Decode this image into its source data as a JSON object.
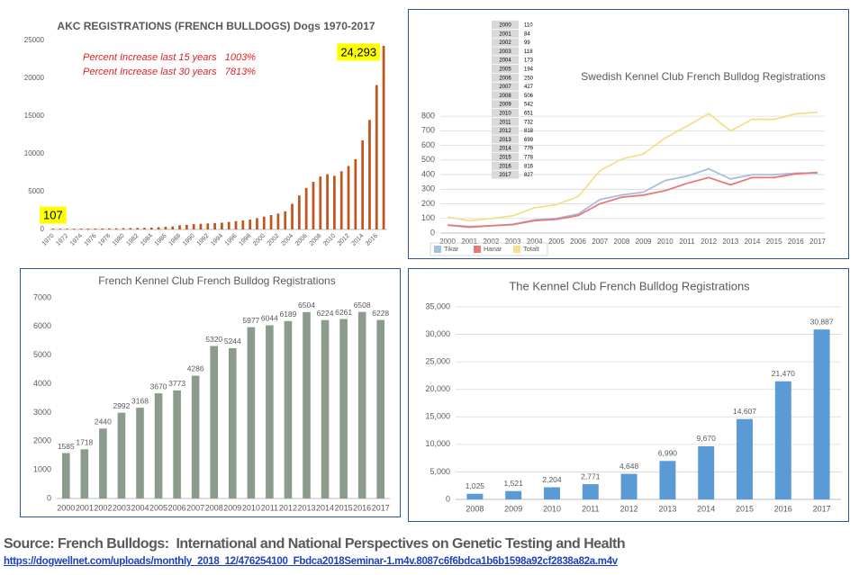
{
  "chart_data": [
    {
      "type": "bar",
      "title": "AKC REGISTRATIONS (FRENCH BULLDOGS) Dogs 1970-2017",
      "annotations": [
        "Percent Increase last 15 years   1003%",
        "Percent Increase last 30 years   7813%"
      ],
      "categories": [
        "1970",
        null,
        "1972",
        null,
        "1974",
        null,
        "1976",
        null,
        "1978",
        null,
        "1980",
        null,
        "1982",
        null,
        "1984",
        null,
        "1986",
        null,
        "1988",
        null,
        "1990",
        null,
        "1992",
        null,
        "1994",
        null,
        "1996",
        null,
        "1998",
        null,
        "2000",
        null,
        "2002",
        null,
        "2004",
        null,
        "2006",
        null,
        "2008",
        null,
        "2010",
        null,
        "2012",
        null,
        "2014",
        null,
        "2016",
        null
      ],
      "values": [
        107,
        105,
        100,
        100,
        110,
        110,
        120,
        130,
        140,
        150,
        170,
        180,
        200,
        220,
        250,
        300,
        350,
        400,
        550,
        600,
        700,
        750,
        800,
        850,
        900,
        1000,
        1100,
        1200,
        1300,
        1500,
        1700,
        1900,
        2100,
        2400,
        3400,
        4500,
        5500,
        6300,
        7000,
        7300,
        7100,
        7700,
        8400,
        9300,
        11800,
        14500,
        19100,
        24293
      ],
      "value_labels": [
        "107",
        null,
        null,
        null,
        null,
        null,
        null,
        null,
        null,
        null,
        null,
        null,
        null,
        null,
        null,
        null,
        null,
        null,
        null,
        null,
        null,
        null,
        null,
        null,
        null,
        null,
        null,
        null,
        null,
        null,
        null,
        null,
        null,
        null,
        null,
        null,
        null,
        null,
        null,
        null,
        null,
        null,
        null,
        null,
        null,
        null,
        null,
        "24,293"
      ],
      "color": "#c0561e",
      "highlight_color": "#ffff00",
      "ylim": [
        0,
        25000
      ],
      "yticks": [
        0,
        5000,
        10000,
        15000,
        20000,
        25000
      ],
      "grid": false
    },
    {
      "type": "line",
      "title": "Swedish Kennel Club French Bulldog Registrations",
      "x": [
        "2000",
        "2001",
        "2002",
        "2003",
        "2004",
        "2005",
        "2006",
        "2007",
        "2008",
        "2009",
        "2010",
        "2011",
        "2012",
        "2013",
        "2014",
        "2015",
        "2016",
        "2017"
      ],
      "series": [
        {
          "name": "Tikar",
          "color": "#a9bde0",
          "values": [
            55,
            45,
            50,
            60,
            90,
            100,
            130,
            230,
            260,
            280,
            360,
            390,
            440,
            370,
            400,
            400,
            410,
            410
          ]
        },
        {
          "name": "Hanar",
          "color": "#e67a7a",
          "values": [
            55,
            40,
            50,
            58,
            85,
            94,
            120,
            200,
            245,
            260,
            290,
            340,
            380,
            330,
            380,
            380,
            405,
            415
          ]
        },
        {
          "name": "Totalt",
          "color": "#f5e08a",
          "values": [
            110,
            84,
            99,
            118,
            173,
            194,
            250,
            427,
            506,
            542,
            651,
            732,
            818,
            699,
            779,
            778,
            816,
            827
          ]
        }
      ],
      "ylim": [
        0,
        850
      ],
      "yticks": [
        0,
        100,
        200,
        300,
        400,
        500,
        600,
        700,
        800
      ],
      "grid": true,
      "legend": "bottom-left",
      "table": true
    },
    {
      "type": "bar",
      "title": "French Kennel Club French Bulldog Registrations",
      "categories": [
        "2000",
        "2001",
        "2002",
        "2003",
        "2004",
        "2005",
        "2006",
        "2007",
        "2008",
        "2009",
        "2010",
        "2011",
        "2012",
        "2013",
        "2014",
        "2015",
        "2016",
        "2017"
      ],
      "values": [
        1585,
        1718,
        2440,
        2992,
        3168,
        3670,
        3773,
        4286,
        5320,
        5244,
        5977,
        6044,
        6189,
        6504,
        6224,
        6261,
        6508,
        6228
      ],
      "color": "#8c9c8c",
      "data_labels": true,
      "ylim": [
        0,
        7000
      ],
      "yticks": [
        0,
        1000,
        2000,
        3000,
        4000,
        5000,
        6000,
        7000
      ],
      "grid": false
    },
    {
      "type": "bar",
      "title": "The Kennel Club French Bulldog Registrations",
      "categories": [
        "2008",
        "2009",
        "2010",
        "2011",
        "2012",
        "2013",
        "2014",
        "2015",
        "2016",
        "2017"
      ],
      "values": [
        1025,
        1521,
        2204,
        2771,
        4648,
        6990,
        9670,
        14607,
        21470,
        30887
      ],
      "value_labels": [
        "1,025",
        "1,521",
        "2,204",
        "2,771",
        "4,648",
        "6,990",
        "9,670",
        "14,607",
        "21,470",
        "30,887"
      ],
      "color": "#5b9bd5",
      "ylim": [
        0,
        35000
      ],
      "yticks": [
        0,
        {
          "value": 5000,
          "label": "5,000"
        },
        {
          "value": 10000,
          "label": "10,000"
        },
        {
          "value": 15000,
          "label": "15,000"
        },
        {
          "value": 20000,
          "label": "20,000"
        },
        {
          "value": 25000,
          "label": "25,000"
        },
        {
          "value": 30000,
          "label": "30,000"
        },
        {
          "value": 35000,
          "label": "35,000"
        }
      ],
      "grid": true
    }
  ],
  "source": {
    "text": "Source: French Bulldogs:  International and National Perspectives on Genetic Testing and Health",
    "url": "https://dogwellnet.com/uploads/monthly_2018_12/476254100_Fbdca2018Seminar-1.m4v.8087c6f6bdca1b6b1598a92cf2838a82a.m4v"
  }
}
